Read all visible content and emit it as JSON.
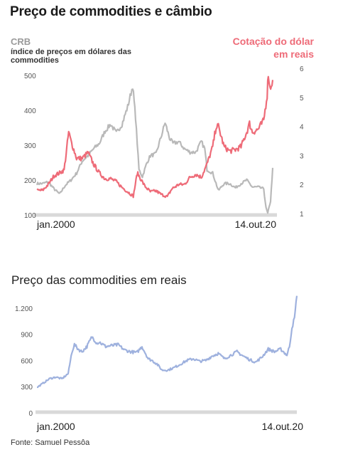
{
  "header": {
    "title": "Preço de commodities e câmbio",
    "crb_label": "CRB",
    "crb_sublabel": "índice de preços em dólares das commodities",
    "dollar_label": "Cotação do dólar em reais",
    "chart2_title": "Preço das commodities em reais",
    "source": "Fonte: Samuel Pessôa"
  },
  "colors": {
    "crb": "#b9b9b9",
    "dollar": "#ee6b78",
    "reais": "#9eb1de",
    "baseline": "#d9d9d9"
  },
  "chart_data": [
    {
      "type": "line",
      "title": "Preço de commodities e câmbio",
      "xlim": [
        2000.0,
        2020.79
      ],
      "x_tick_labels": [
        {
          "x": 2000.0,
          "label": "jan.2000"
        },
        {
          "x": 2020.79,
          "label": "14.out.20"
        }
      ],
      "y_left": {
        "label": "CRB",
        "ylim": [
          100,
          500
        ],
        "ticks": [
          100,
          200,
          300,
          400,
          500
        ]
      },
      "y_right": {
        "label": "Cotação do dólar em reais",
        "ylim": [
          1,
          6
        ],
        "ticks": [
          1,
          2,
          3,
          4,
          5,
          6
        ]
      },
      "series": [
        {
          "name": "CRB",
          "axis": "left",
          "points": [
            [
              2000.0,
              190
            ],
            [
              2000.5,
              190
            ],
            [
              2001.0,
              195
            ],
            [
              2001.5,
              175
            ],
            [
              2002.0,
              160
            ],
            [
              2002.5,
              185
            ],
            [
              2003.0,
              200
            ],
            [
              2003.5,
              220
            ],
            [
              2004.0,
              255
            ],
            [
              2004.5,
              270
            ],
            [
              2005.0,
              290
            ],
            [
              2005.5,
              305
            ],
            [
              2006.0,
              340
            ],
            [
              2006.5,
              360
            ],
            [
              2007.0,
              335
            ],
            [
              2007.5,
              360
            ],
            [
              2008.0,
              410
            ],
            [
              2008.45,
              470
            ],
            [
              2008.7,
              380
            ],
            [
              2009.0,
              230
            ],
            [
              2009.3,
              210
            ],
            [
              2009.7,
              250
            ],
            [
              2010.0,
              270
            ],
            [
              2010.5,
              275
            ],
            [
              2011.0,
              330
            ],
            [
              2011.3,
              365
            ],
            [
              2011.7,
              320
            ],
            [
              2012.0,
              305
            ],
            [
              2012.5,
              310
            ],
            [
              2013.0,
              290
            ],
            [
              2013.5,
              280
            ],
            [
              2014.0,
              280
            ],
            [
              2014.5,
              310
            ],
            [
              2014.8,
              290
            ],
            [
              2015.0,
              230
            ],
            [
              2015.5,
              220
            ],
            [
              2016.0,
              170
            ],
            [
              2016.5,
              190
            ],
            [
              2017.0,
              190
            ],
            [
              2017.5,
              178
            ],
            [
              2018.0,
              190
            ],
            [
              2018.5,
              200
            ],
            [
              2019.0,
              180
            ],
            [
              2019.5,
              180
            ],
            [
              2020.0,
              175
            ],
            [
              2020.2,
              120
            ],
            [
              2020.35,
              105
            ],
            [
              2020.6,
              140
            ],
            [
              2020.79,
              235
            ]
          ]
        },
        {
          "name": "Cotação do dólar em reais",
          "axis": "right",
          "points": [
            [
              2000.0,
              1.8
            ],
            [
              2000.5,
              1.8
            ],
            [
              2001.0,
              2.0
            ],
            [
              2001.5,
              2.3
            ],
            [
              2002.0,
              2.4
            ],
            [
              2002.4,
              2.5
            ],
            [
              2002.8,
              3.8
            ],
            [
              2003.0,
              3.5
            ],
            [
              2003.5,
              2.9
            ],
            [
              2004.0,
              2.9
            ],
            [
              2004.5,
              3.1
            ],
            [
              2005.0,
              2.7
            ],
            [
              2005.5,
              2.4
            ],
            [
              2006.0,
              2.2
            ],
            [
              2006.5,
              2.2
            ],
            [
              2007.0,
              2.1
            ],
            [
              2007.5,
              1.9
            ],
            [
              2008.0,
              1.75
            ],
            [
              2008.5,
              1.6
            ],
            [
              2008.85,
              2.4
            ],
            [
              2009.0,
              2.3
            ],
            [
              2009.5,
              1.95
            ],
            [
              2010.0,
              1.75
            ],
            [
              2010.5,
              1.78
            ],
            [
              2011.0,
              1.65
            ],
            [
              2011.5,
              1.58
            ],
            [
              2011.9,
              1.85
            ],
            [
              2012.5,
              2.0
            ],
            [
              2013.0,
              2.0
            ],
            [
              2013.5,
              2.25
            ],
            [
              2014.0,
              2.35
            ],
            [
              2014.5,
              2.25
            ],
            [
              2015.0,
              2.7
            ],
            [
              2015.5,
              3.3
            ],
            [
              2015.8,
              4.0
            ],
            [
              2016.0,
              4.0
            ],
            [
              2016.5,
              3.3
            ],
            [
              2017.0,
              3.15
            ],
            [
              2017.5,
              3.2
            ],
            [
              2018.0,
              3.3
            ],
            [
              2018.5,
              3.8
            ],
            [
              2018.75,
              4.1
            ],
            [
              2019.0,
              3.8
            ],
            [
              2019.5,
              3.9
            ],
            [
              2020.0,
              4.2
            ],
            [
              2020.3,
              5.1
            ],
            [
              2020.4,
              5.85
            ],
            [
              2020.55,
              5.3
            ],
            [
              2020.79,
              5.6
            ]
          ]
        }
      ]
    },
    {
      "type": "line",
      "title": "Preço das commodities em reais",
      "xlim": [
        2000.0,
        2020.79
      ],
      "x_tick_labels": [
        {
          "x": 2000.0,
          "label": "jan.2000"
        },
        {
          "x": 2020.79,
          "label": "14.out.20"
        }
      ],
      "ylim": [
        0,
        1300
      ],
      "y_ticks": [
        0,
        300,
        600,
        900,
        1200
      ],
      "y_tick_labels": [
        "0",
        "300",
        "600",
        "900",
        "1.200"
      ],
      "series": [
        {
          "name": "Preço das commodities em reais",
          "points": [
            [
              2000.0,
              290
            ],
            [
              2000.5,
              340
            ],
            [
              2001.0,
              390
            ],
            [
              2001.5,
              410
            ],
            [
              2002.0,
              390
            ],
            [
              2002.5,
              450
            ],
            [
              2002.8,
              700
            ],
            [
              2003.0,
              780
            ],
            [
              2003.3,
              730
            ],
            [
              2003.6,
              700
            ],
            [
              2004.0,
              760
            ],
            [
              2004.4,
              870
            ],
            [
              2004.8,
              800
            ],
            [
              2005.0,
              810
            ],
            [
              2005.5,
              760
            ],
            [
              2006.0,
              770
            ],
            [
              2006.5,
              780
            ],
            [
              2007.0,
              720
            ],
            [
              2007.5,
              700
            ],
            [
              2008.0,
              690
            ],
            [
              2008.4,
              760
            ],
            [
              2008.9,
              620
            ],
            [
              2009.2,
              600
            ],
            [
              2009.6,
              560
            ],
            [
              2010.0,
              490
            ],
            [
              2010.5,
              490
            ],
            [
              2011.0,
              520
            ],
            [
              2011.5,
              560
            ],
            [
              2012.0,
              600
            ],
            [
              2012.5,
              620
            ],
            [
              2013.0,
              590
            ],
            [
              2013.5,
              600
            ],
            [
              2014.0,
              650
            ],
            [
              2014.5,
              680
            ],
            [
              2015.0,
              620
            ],
            [
              2015.5,
              660
            ],
            [
              2016.0,
              700
            ],
            [
              2016.5,
              650
            ],
            [
              2017.0,
              610
            ],
            [
              2017.5,
              580
            ],
            [
              2018.0,
              640
            ],
            [
              2018.5,
              730
            ],
            [
              2019.0,
              700
            ],
            [
              2019.5,
              730
            ],
            [
              2020.0,
              660
            ],
            [
              2020.2,
              760
            ],
            [
              2020.4,
              980
            ],
            [
              2020.6,
              1080
            ],
            [
              2020.79,
              1340
            ]
          ]
        }
      ]
    }
  ]
}
